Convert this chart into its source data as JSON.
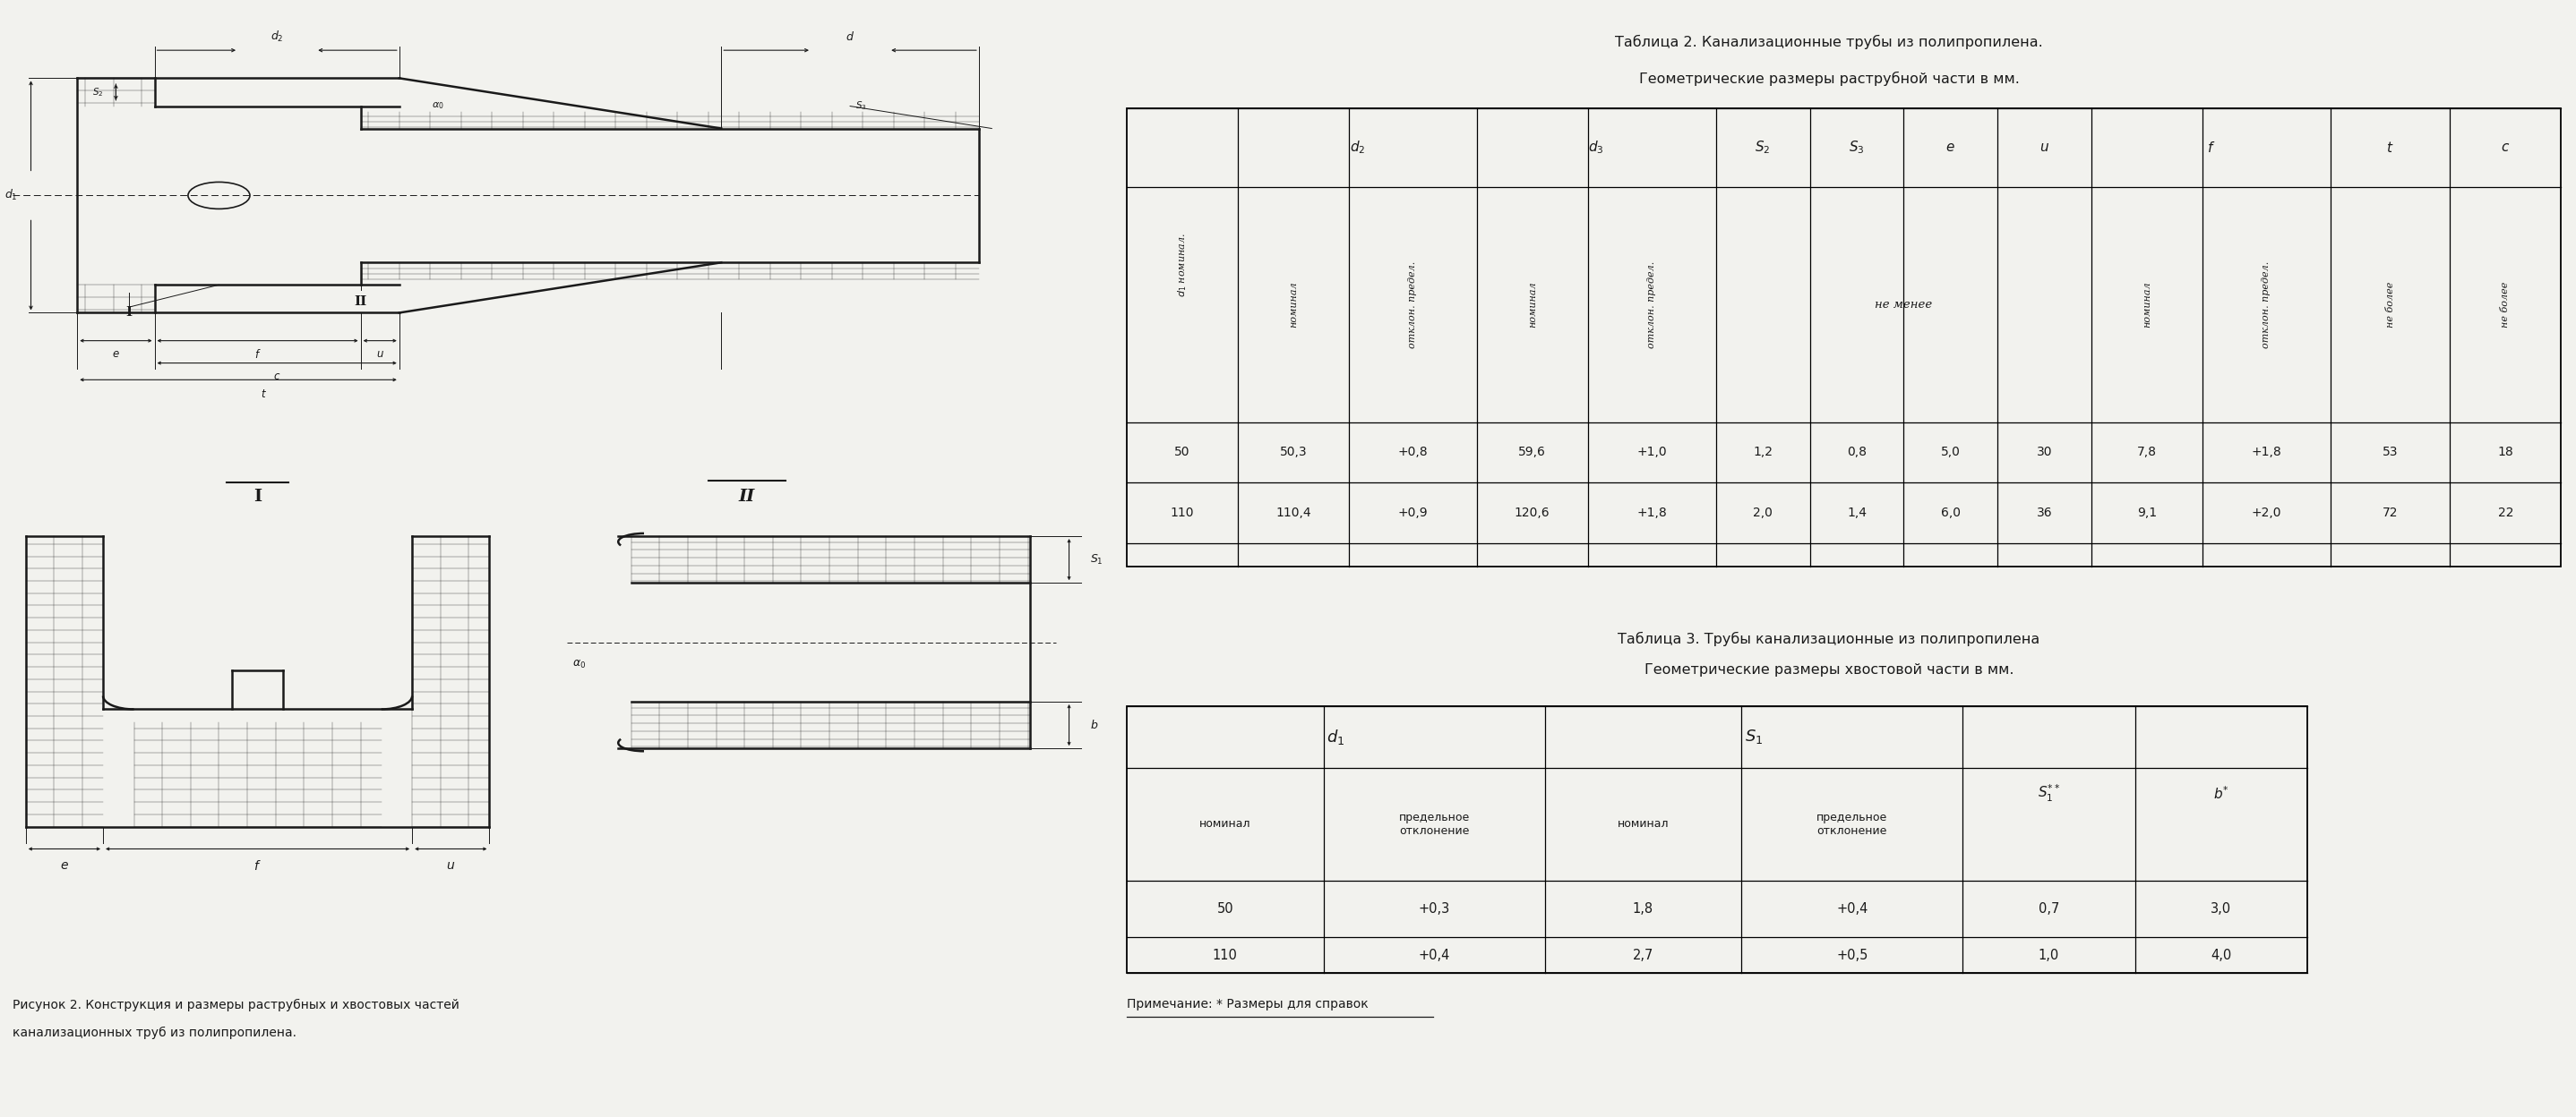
{
  "bg_color": "#f2f2ee",
  "title2_line1": "Таблица 2. Канализационные трубы из полипропилена.",
  "title2_line2": "Геометрические размеры раструбной части в мм.",
  "title3_line1": "Таблица 3. Трубы канализационные из полипропилена",
  "title3_line2": "Геометрические размеры хвостовой части в мм.",
  "figure_caption_line1": "Рисунок 2. Конструкция и размеры раструбных и хвостовых частей",
  "figure_caption_line2": "канализационных труб из полипропилена.",
  "table2_data": [
    [
      "50",
      "50,3",
      "+0,8",
      "59,6",
      "+1,0",
      "1,2",
      "0,8",
      "5,0",
      "30",
      "7,8",
      "+1,8",
      "53",
      "18"
    ],
    [
      "110",
      "110,4",
      "+0,9",
      "120,6",
      "+1,8",
      "2,0",
      "1,4",
      "6,0",
      "36",
      "9,1",
      "+2,0",
      "72",
      "22"
    ]
  ],
  "table3_data": [
    [
      "50",
      "+0,3",
      "1,8",
      "+0,4",
      "0,7",
      "3,0"
    ],
    [
      "110",
      "+0,4",
      "2,7",
      "+0,5",
      "1,0",
      "4,0"
    ]
  ],
  "table3_note": "Примечание: * Размеры для справок"
}
